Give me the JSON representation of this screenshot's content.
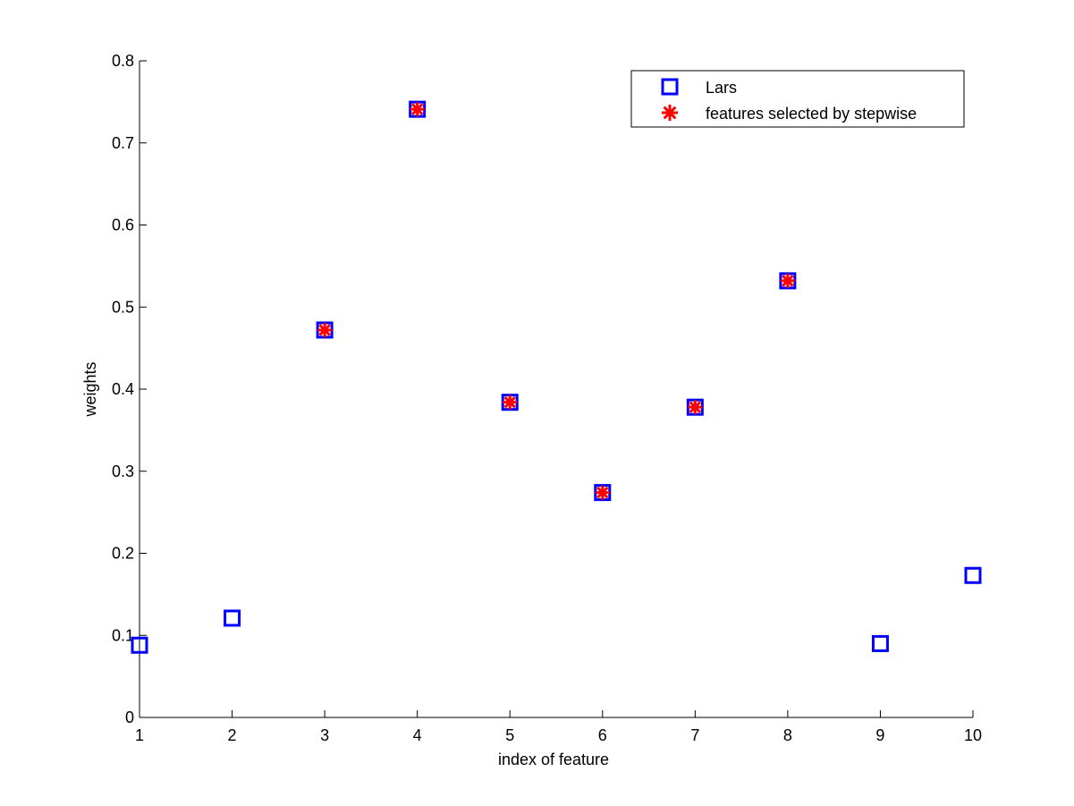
{
  "chart_data": {
    "type": "scatter",
    "xlabel": "index of feature",
    "ylabel": "weights",
    "xlim": [
      1,
      10
    ],
    "ylim": [
      0,
      0.8
    ],
    "xticks": [
      "1",
      "2",
      "3",
      "4",
      "5",
      "6",
      "7",
      "8",
      "9",
      "10"
    ],
    "yticks": [
      "0",
      "0.1",
      "0.2",
      "0.3",
      "0.4",
      "0.5",
      "0.6",
      "0.7",
      "0.8"
    ],
    "grid": false,
    "legend_position": "top-right",
    "series": [
      {
        "name": "Lars",
        "marker": "square",
        "color": "#0000ff",
        "x": [
          1,
          2,
          3,
          4,
          5,
          6,
          7,
          8,
          9,
          10
        ],
        "y": [
          0.088,
          0.121,
          0.472,
          0.741,
          0.384,
          0.274,
          0.378,
          0.532,
          0.09,
          0.173
        ]
      },
      {
        "name": "features selected by stepwise",
        "marker": "asterisk",
        "color": "#ff0000",
        "x": [
          3,
          4,
          5,
          6,
          7,
          8
        ],
        "y": [
          0.472,
          0.741,
          0.384,
          0.274,
          0.378,
          0.532
        ]
      }
    ]
  }
}
